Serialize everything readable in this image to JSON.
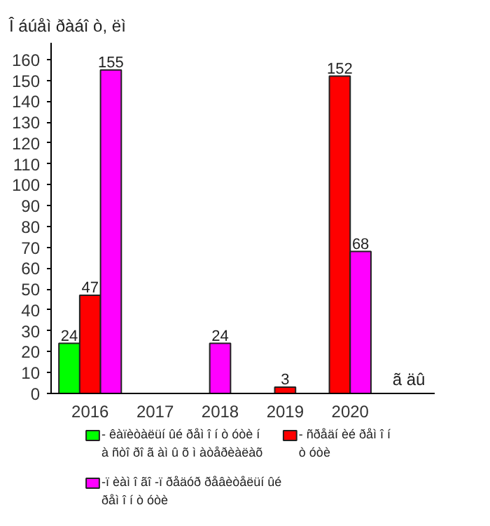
{
  "chart_data": {
    "type": "bar",
    "ylabel": "Î áúåì  ðàáî ò, ëì",
    "xlabel": "ã äû",
    "categories": [
      "2016",
      "2017",
      "2018",
      "2019",
      "2020"
    ],
    "series": [
      {
        "name": "- êàïèòàëüí ûé ðåì î í ò óòè í à ñòî ðî ã àì û õ ì àòåðèàëàõ",
        "color": "#00ff00",
        "values": [
          24,
          null,
          null,
          null,
          null
        ]
      },
      {
        "name": "- ñðåäí èé ðåì î í ò óòè",
        "color": "#ff0000",
        "values": [
          47,
          null,
          null,
          3,
          152
        ]
      },
      {
        "name": "-ï èàì î ãî -ï ðåäóð ðåâèòåëüí ûé ðåì î í ò óòè",
        "color": "#ff00ff",
        "values": [
          155,
          null,
          24,
          null,
          68
        ]
      }
    ],
    "ylim": [
      0,
      168
    ],
    "yticks": [
      0,
      10,
      20,
      30,
      40,
      50,
      60,
      70,
      80,
      90,
      100,
      110,
      120,
      130,
      140,
      150,
      160
    ],
    "data_labels": true,
    "grid": false,
    "legend": "bottom"
  }
}
